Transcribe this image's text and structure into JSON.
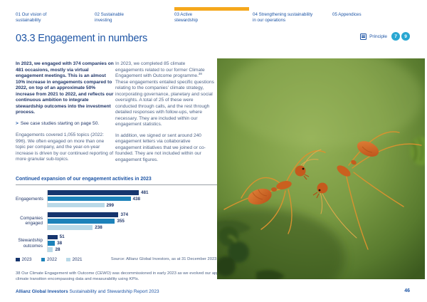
{
  "nav": {
    "items": [
      {
        "line1": "01 Our vision of",
        "line2": "sustainability",
        "active": false
      },
      {
        "line1": "02 Sustainable",
        "line2": "investing",
        "active": false
      },
      {
        "line1": "03 Active",
        "line2": "stewardship",
        "active": true
      },
      {
        "line1": "04 Strengthening sustainability",
        "line2": "in our operations",
        "active": false
      },
      {
        "line1": "05 Appendices",
        "line2": "",
        "active": false
      }
    ]
  },
  "header": {
    "title": "03.3 Engagement in numbers",
    "principle_label": "Principle",
    "principle_numbers": [
      "7",
      "9"
    ]
  },
  "article": {
    "intro_bold": "In 2023, we engaged with 374 companies on 481 occasions, mostly via virtual engagement meetings. This is an almost 10% increase in engagements compared to 2022, on top of an approximate 50% increase from 2021 to 2022, and reflects our continuous ambition to integrate stewardship outcomes into the investment process.",
    "case_link_icon": ">",
    "case_link": "See case studies starting on page 50.",
    "para2": "Engagements covered 1,055 topics (2022: 996). We often engaged on more than one topic per company, and the year-on-year increase is driven by our continued reporting of more granular sub-topics.",
    "col2_para1_before_sup": "In 2023, we completed 85 climate engagements related to our former Climate Engagement with Outcome programme.",
    "col2_sup": "38",
    "col2_para1_after_sup": " These engagements entailed specific questions relating to the companies' climate strategy, incorporating governance, planetary and social oversights. A total of 25 of these were conducted through calls, and the rest through detailed responses with follow-ups, where necessary. They are included within our engagement statistics.",
    "col2_para2": "In addition, we signed or sent around 240 engagement letters via collaborative engagement initiatives that we joined or co-founded. They are not included within our engagement figures."
  },
  "chart_data": {
    "type": "bar",
    "orientation": "horizontal",
    "title": "Continued expansion of our engagement activities in 2023",
    "categories": [
      "Engagements",
      "Companies engaged",
      "Stewardship outcomes"
    ],
    "series": [
      {
        "name": "2023",
        "color": "#16356e",
        "values": [
          481,
          374,
          51
        ]
      },
      {
        "name": "2022",
        "color": "#1d82ba",
        "values": [
          438,
          355,
          38
        ]
      },
      {
        "name": "2021",
        "color": "#b9d9e8",
        "values": [
          299,
          238,
          28
        ]
      }
    ],
    "xlim": [
      0,
      500
    ],
    "value_labels": true,
    "legend_position": "bottom-left",
    "grid": false,
    "source": "Source: Allianz Global Investors, as at 31 December 2023."
  },
  "footnote": {
    "number": "38",
    "text": "Our Climate Engagement with Outcome (CEWO) was decommissioned in early 2023 as we evolved our approach to climate transition encompassing data and measurability using KPIs."
  },
  "footer": {
    "brand": "Allianz Global Investors",
    "title_rest": " Sustainability and Stewardship Report 2023",
    "page_number": "46"
  },
  "photo": {
    "description": "Two red weaver ants forming a bridge between green plant tips against a blurred green background"
  },
  "colors": {
    "brand_blue": "#1e55a5",
    "accent_yellow": "#f5a81c",
    "badge_teal": "#29a7d2",
    "bar_2023": "#16356e",
    "bar_2022": "#1d82ba",
    "bar_2021": "#b9d9e8"
  }
}
